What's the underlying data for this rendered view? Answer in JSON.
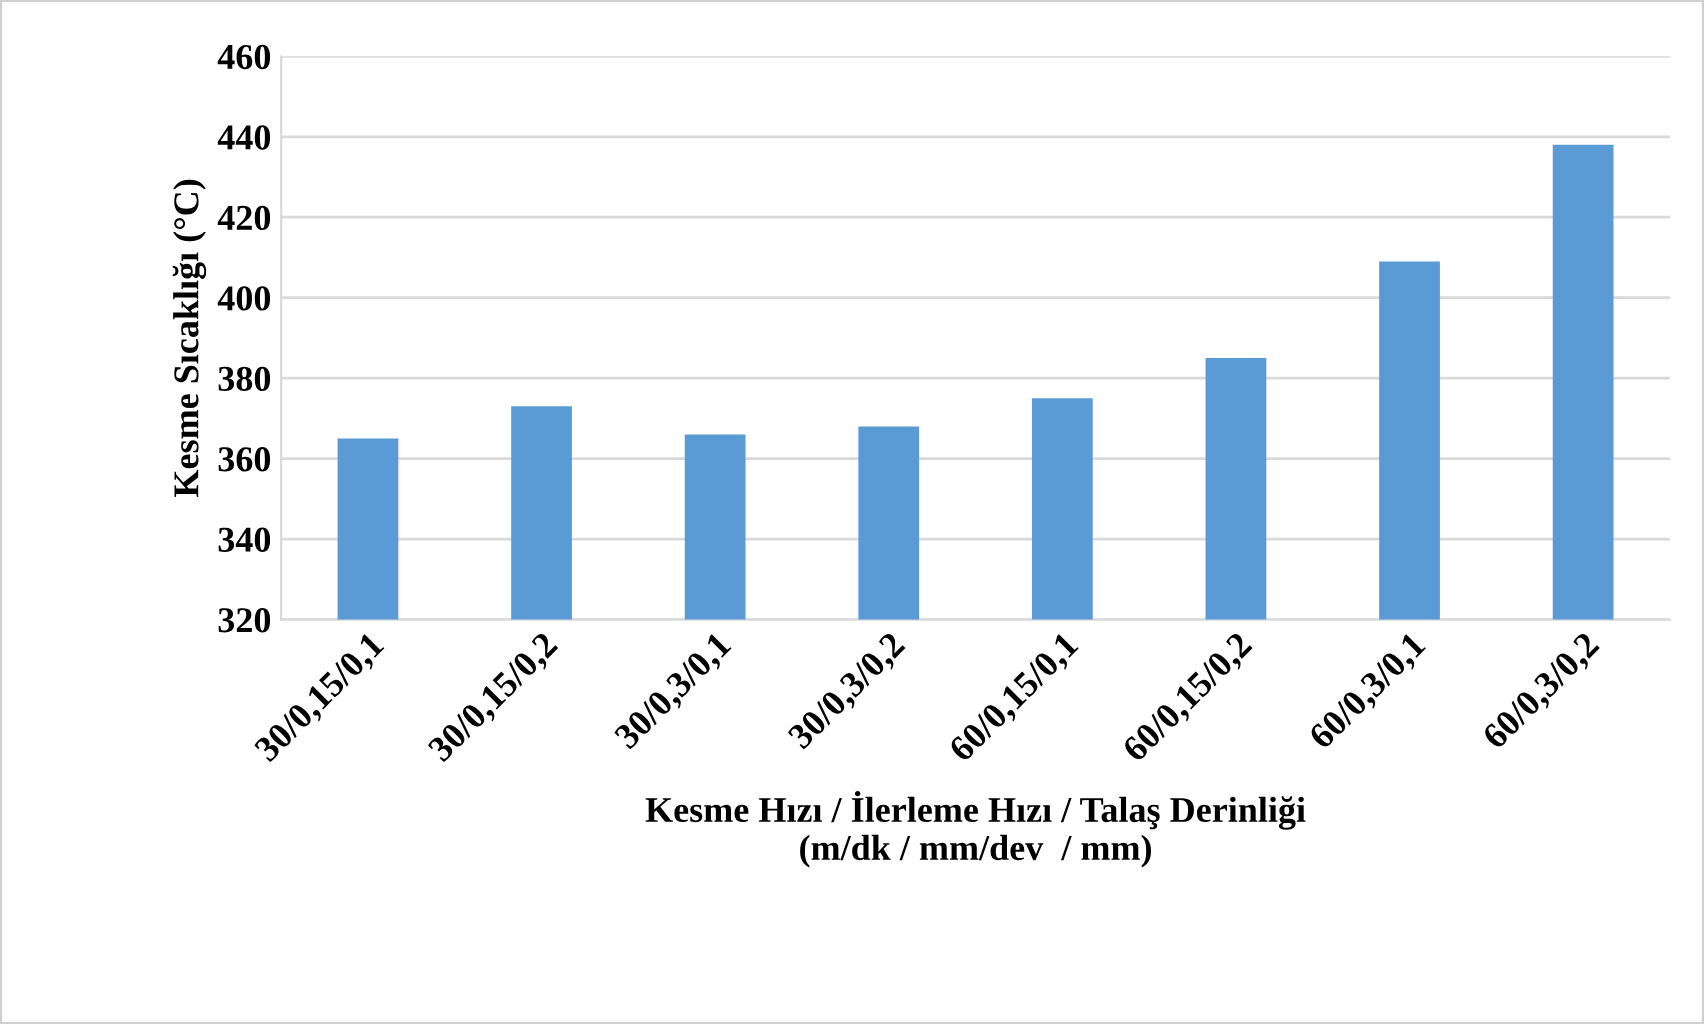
{
  "chart_data": {
    "type": "bar",
    "categories": [
      "30/0,15/0,1",
      "30/0,15/0,2",
      "30/0,3/0,1",
      "30/0,3/0,2",
      "60/0,15/0,1",
      "60/0,15/0,2",
      "60/0,3/0,1",
      "60/0,3/0,2"
    ],
    "values": [
      365,
      373,
      366,
      368,
      375,
      385,
      409,
      438
    ],
    "color": "#5b9bd5",
    "xlabel": "Kesme Hızı / İlerleme Hızı / Talaş Derinliği\n(m/dk / mm/dev  / mm)",
    "ylabel": "Kesme Sıcaklığı (°C)",
    "ylim": [
      320,
      460
    ],
    "yticks": [
      320,
      340,
      360,
      380,
      400,
      420,
      440,
      460
    ],
    "grid": "y",
    "legend": false
  }
}
